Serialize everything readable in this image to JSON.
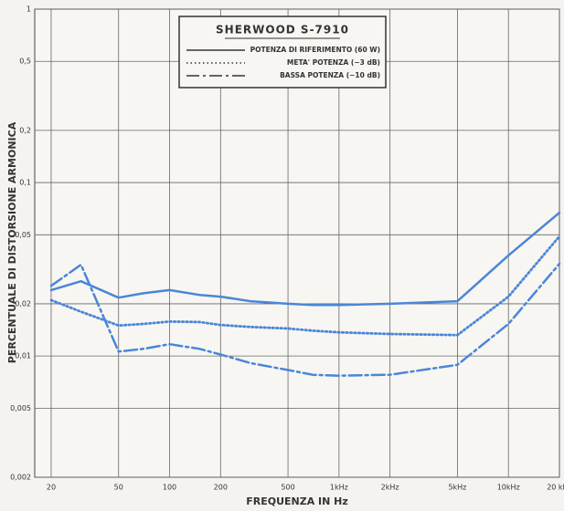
{
  "chart_data": {
    "type": "line",
    "title": "SHERWOOD S-7910",
    "x_label": "FREQUENZA IN Hz",
    "y_label": "PERCENTUALE DI DISTORSIONE ARMONICA",
    "log_x": true,
    "log_y": true,
    "grid": true,
    "x": [
      20,
      30,
      50,
      70,
      100,
      150,
      200,
      300,
      500,
      700,
      1000,
      2000,
      5000,
      10000,
      20000
    ],
    "series": [
      {
        "name": "POTENZA DI RIFERIMENTO (60 W)",
        "color": "#4a86d8",
        "style": "solid",
        "values": [
          0.024,
          0.027,
          0.0217,
          0.023,
          0.024,
          0.0225,
          0.022,
          0.0207,
          0.02,
          0.0197,
          0.0197,
          0.02,
          0.0207,
          0.038,
          0.067
        ]
      },
      {
        "name": "META' POTENZA (−3 dB)",
        "color": "#4a86d8",
        "style": "dotted",
        "values": [
          0.021,
          0.018,
          0.015,
          0.0153,
          0.0158,
          0.0157,
          0.0151,
          0.0147,
          0.0144,
          0.014,
          0.0137,
          0.0134,
          0.0132,
          0.022,
          0.049
        ]
      },
      {
        "name": "BASSA POTENZA (−10 dB)",
        "color": "#4a86d8",
        "style": "dashdot",
        "values": [
          0.0254,
          0.0336,
          0.0106,
          0.011,
          0.0117,
          0.011,
          0.0102,
          0.0091,
          0.0083,
          0.0078,
          0.0077,
          0.0078,
          0.0089,
          0.0153,
          0.034
        ]
      }
    ],
    "xlim": [
      16,
      20000
    ],
    "xticks": [
      20,
      50,
      100,
      200,
      500,
      {
        "value": 1000,
        "label": "1kHz"
      },
      {
        "value": 2000,
        "label": "2kHz"
      },
      {
        "value": 5000,
        "label": "5kHz"
      },
      {
        "value": 10000,
        "label": "10kHz"
      },
      {
        "value": 20000,
        "label": "20 kHz"
      }
    ],
    "ylim": [
      0.002,
      1
    ],
    "yticks": [
      {
        "value": 0.002,
        "label": "0,002"
      },
      {
        "value": 0.005,
        "label": "0,005"
      },
      {
        "value": 0.01,
        "label": "0,01"
      },
      {
        "value": 0.02,
        "label": "0,02"
      },
      {
        "value": 0.05,
        "label": "0,05"
      },
      {
        "value": 0.1,
        "label": "0,1"
      },
      {
        "value": 0.2,
        "label": "0,2"
      },
      {
        "value": 0.5,
        "label": "0,5"
      },
      1
    ]
  }
}
